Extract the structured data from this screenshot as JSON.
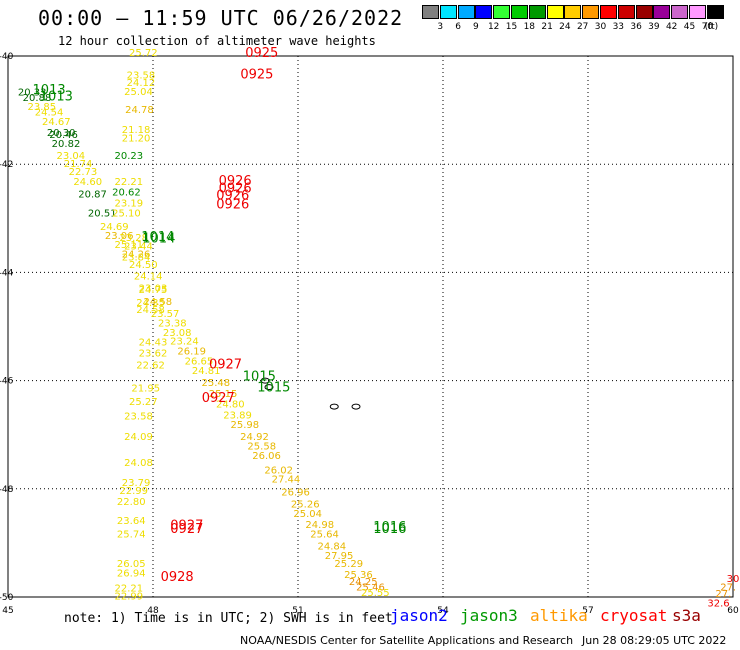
{
  "header": {
    "title": "00:00 – 11:59 UTC 06/26/2022",
    "subtitle": "12 hour collection of altimeter wave heights"
  },
  "colorbar": {
    "colors": [
      "#808080",
      "#00e5ff",
      "#00aaff",
      "#0000ff",
      "#33ff33",
      "#00cc00",
      "#009900",
      "#ffff00",
      "#ffcc00",
      "#ff9900",
      "#ff0000",
      "#cc0000",
      "#990000",
      "#990099",
      "#cc66cc",
      "#ff99ff",
      "#000000"
    ],
    "labels": [
      "3",
      "6",
      "9",
      "12",
      "15",
      "18",
      "21",
      "24",
      "27",
      "30",
      "33",
      "36",
      "39",
      "42",
      "45",
      "70"
    ],
    "unit": "(ft)"
  },
  "footer": {
    "note": "note: 1) Time is in UTC; 2) SWH is in feet",
    "satellites": [
      {
        "name": "jason2",
        "color": "#0000ff"
      },
      {
        "name": "jason3",
        "color": "#009900"
      },
      {
        "name": "altika",
        "color": "#ff9900"
      },
      {
        "name": "cryosat",
        "color": "#ff0000"
      },
      {
        "name": "s3a",
        "color": "#990000"
      }
    ],
    "credit": "NOAA/NESDIS Center for Satellite Applications and Research",
    "timestamp": "Jun 28 08:29:05 UTC 2022"
  },
  "chart_data": {
    "type": "scatter",
    "title": "00:00 – 11:59 UTC 06/26/2022",
    "subtitle": "12 hour collection of altimeter wave heights",
    "xlabel": "",
    "ylabel": "",
    "xlim": [
      45,
      60
    ],
    "ylim": [
      -50,
      -40
    ],
    "x_ticks": [
      "45",
      "48",
      "51",
      "54",
      "57",
      "60"
    ],
    "y_ticks": [
      "-40",
      "-42",
      "-44",
      "-46",
      "-48",
      "-50"
    ],
    "grid": true,
    "colors": {
      "green": "#008800",
      "yellow": "#eedd00",
      "gold": "#e8b800",
      "orange": "#e89000",
      "red": "#ee0000",
      "darkgreen": "#006600"
    },
    "wave_heights": [
      {
        "x": 45.5,
        "y": -40.73,
        "label": "20.33",
        "color": "darkgreen"
      },
      {
        "x": 45.6,
        "y": -40.83,
        "label": "20.88",
        "color": "darkgreen"
      },
      {
        "x": 45.7,
        "y": -41.0,
        "label": "23.85",
        "color": "yellow"
      },
      {
        "x": 45.85,
        "y": -41.1,
        "label": "24.54",
        "color": "yellow"
      },
      {
        "x": 46.0,
        "y": -41.28,
        "label": "24.67",
        "color": "yellow"
      },
      {
        "x": 46.1,
        "y": -41.48,
        "label": "20.30",
        "color": "darkgreen"
      },
      {
        "x": 46.15,
        "y": -41.52,
        "label": "20.46",
        "color": "darkgreen"
      },
      {
        "x": 46.2,
        "y": -41.68,
        "label": "20.82",
        "color": "darkgreen"
      },
      {
        "x": 46.3,
        "y": -41.9,
        "label": "23.04",
        "color": "yellow"
      },
      {
        "x": 46.45,
        "y": -42.05,
        "label": "21.74",
        "color": "yellow"
      },
      {
        "x": 46.55,
        "y": -42.2,
        "label": "22.73",
        "color": "yellow"
      },
      {
        "x": 46.65,
        "y": -42.38,
        "label": "24.60",
        "color": "yellow"
      },
      {
        "x": 46.75,
        "y": -42.62,
        "label": "20.87",
        "color": "darkgreen"
      },
      {
        "x": 46.95,
        "y": -42.97,
        "label": "20.51",
        "color": "darkgreen"
      },
      {
        "x": 47.2,
        "y": -43.22,
        "label": "24.69",
        "color": "yellow"
      },
      {
        "x": 47.3,
        "y": -43.38,
        "label": "23.06",
        "color": "gold"
      },
      {
        "x": 47.5,
        "y": -43.55,
        "label": "25.11",
        "color": "yellow"
      },
      {
        "x": 47.65,
        "y": -43.72,
        "label": "24.26",
        "color": "gold"
      },
      {
        "x": 47.8,
        "y": -43.92,
        "label": "24.50",
        "color": "yellow"
      },
      {
        "x": 47.9,
        "y": -44.13,
        "label": "24.14",
        "color": "yellow"
      },
      {
        "x": 48.0,
        "y": -44.38,
        "label": "24.75",
        "color": "yellow"
      },
      {
        "x": 48.1,
        "y": -44.6,
        "label": "24.58",
        "color": "gold"
      },
      {
        "x": 48.25,
        "y": -44.82,
        "label": "23.57",
        "color": "yellow"
      },
      {
        "x": 48.4,
        "y": -45.0,
        "label": "23.38",
        "color": "yellow"
      },
      {
        "x": 48.5,
        "y": -45.18,
        "label": "23.08",
        "color": "yellow"
      },
      {
        "x": 48.65,
        "y": -45.33,
        "label": "23.24",
        "color": "yellow"
      },
      {
        "x": 48.8,
        "y": -45.52,
        "label": "26.19",
        "color": "gold"
      },
      {
        "x": 48.95,
        "y": -45.7,
        "label": "26.65",
        "color": "yellow"
      },
      {
        "x": 49.1,
        "y": -45.88,
        "label": "24.81",
        "color": "yellow"
      },
      {
        "x": 49.3,
        "y": -46.1,
        "label": "25.48",
        "color": "gold"
      },
      {
        "x": 49.45,
        "y": -46.3,
        "label": "25.15",
        "color": "gold"
      },
      {
        "x": 49.6,
        "y": -46.5,
        "label": "24.80",
        "color": "yellow"
      },
      {
        "x": 49.75,
        "y": -46.7,
        "label": "23.89",
        "color": "yellow"
      },
      {
        "x": 49.9,
        "y": -46.88,
        "label": "25.98",
        "color": "gold"
      },
      {
        "x": 50.1,
        "y": -47.1,
        "label": "24.92",
        "color": "gold"
      },
      {
        "x": 50.25,
        "y": -47.27,
        "label": "25.58",
        "color": "gold"
      },
      {
        "x": 50.35,
        "y": -47.45,
        "label": "26.06",
        "color": "gold"
      },
      {
        "x": 50.6,
        "y": -47.72,
        "label": "26.02",
        "color": "gold"
      },
      {
        "x": 50.75,
        "y": -47.88,
        "label": "27.44",
        "color": "gold"
      },
      {
        "x": 50.95,
        "y": -48.12,
        "label": "26.96",
        "color": "gold"
      },
      {
        "x": 51.15,
        "y": -48.35,
        "label": "25.26",
        "color": "gold"
      },
      {
        "x": 51.2,
        "y": -48.52,
        "label": "25.04",
        "color": "gold"
      },
      {
        "x": 51.45,
        "y": -48.72,
        "label": "24.98",
        "color": "gold"
      },
      {
        "x": 51.55,
        "y": -48.9,
        "label": "25.64",
        "color": "gold"
      },
      {
        "x": 51.7,
        "y": -49.12,
        "label": "24.84",
        "color": "gold"
      },
      {
        "x": 51.85,
        "y": -49.3,
        "label": "27.95",
        "color": "gold"
      },
      {
        "x": 52.05,
        "y": -49.45,
        "label": "25.29",
        "color": "gold"
      },
      {
        "x": 52.25,
        "y": -49.65,
        "label": "25.36",
        "color": "gold"
      },
      {
        "x": 52.35,
        "y": -49.78,
        "label": "24.25",
        "color": "orange"
      },
      {
        "x": 52.5,
        "y": -49.88,
        "label": "25.46",
        "color": "orange"
      },
      {
        "x": 52.6,
        "y": -49.98,
        "label": "25.55",
        "color": "yellow"
      },
      {
        "x": 47.8,
        "y": -40.0,
        "label": "25.72",
        "color": "yellow"
      },
      {
        "x": 47.75,
        "y": -40.42,
        "label": "23.58",
        "color": "yellow"
      },
      {
        "x": 47.75,
        "y": -40.55,
        "label": "24.12",
        "color": "yellow"
      },
      {
        "x": 47.7,
        "y": -40.72,
        "label": "25.04",
        "color": "yellow"
      },
      {
        "x": 47.72,
        "y": -41.05,
        "label": "24.78",
        "color": "gold"
      },
      {
        "x": 47.65,
        "y": -41.42,
        "label": "21.18",
        "color": "yellow"
      },
      {
        "x": 47.65,
        "y": -41.58,
        "label": "21.20",
        "color": "yellow"
      },
      {
        "x": 47.5,
        "y": -41.9,
        "label": "20.23",
        "color": "green"
      },
      {
        "x": 47.5,
        "y": -42.38,
        "label": "22.21",
        "color": "yellow"
      },
      {
        "x": 47.45,
        "y": -42.58,
        "label": "20.62",
        "color": "green"
      },
      {
        "x": 47.5,
        "y": -42.78,
        "label": "23.19",
        "color": "yellow"
      },
      {
        "x": 47.45,
        "y": -42.97,
        "label": "25.10",
        "color": "yellow"
      },
      {
        "x": 47.6,
        "y": -43.42,
        "label": "23.28",
        "color": "yellow"
      },
      {
        "x": 47.7,
        "y": -43.58,
        "label": "23.44",
        "color": "yellow"
      },
      {
        "x": 47.65,
        "y": -43.78,
        "label": "23.84",
        "color": "yellow"
      },
      {
        "x": 48.0,
        "y": -44.35,
        "label": "23.03",
        "color": "yellow"
      },
      {
        "x": 47.95,
        "y": -44.62,
        "label": "24.35",
        "color": "yellow"
      },
      {
        "x": 47.95,
        "y": -44.75,
        "label": "24.58",
        "color": "yellow"
      },
      {
        "x": 48.0,
        "y": -45.35,
        "label": "24.43",
        "color": "yellow"
      },
      {
        "x": 48.0,
        "y": -45.55,
        "label": "23.62",
        "color": "yellow"
      },
      {
        "x": 47.95,
        "y": -45.78,
        "label": "22.62",
        "color": "yellow"
      },
      {
        "x": 47.85,
        "y": -46.2,
        "label": "21.95",
        "color": "yellow"
      },
      {
        "x": 47.8,
        "y": -46.45,
        "label": "25.27",
        "color": "yellow"
      },
      {
        "x": 47.7,
        "y": -46.72,
        "label": "23.58",
        "color": "yellow"
      },
      {
        "x": 47.7,
        "y": -47.1,
        "label": "24.09",
        "color": "yellow"
      },
      {
        "x": 47.7,
        "y": -47.58,
        "label": "24.08",
        "color": "yellow"
      },
      {
        "x": 47.65,
        "y": -47.95,
        "label": "23.79",
        "color": "yellow"
      },
      {
        "x": 47.6,
        "y": -48.1,
        "label": "22.99",
        "color": "yellow"
      },
      {
        "x": 47.55,
        "y": -48.3,
        "label": "22.80",
        "color": "yellow"
      },
      {
        "x": 47.55,
        "y": -48.65,
        "label": "23.64",
        "color": "yellow"
      },
      {
        "x": 47.55,
        "y": -48.9,
        "label": "25.74",
        "color": "yellow"
      },
      {
        "x": 47.55,
        "y": -49.45,
        "label": "26.05",
        "color": "yellow"
      },
      {
        "x": 47.55,
        "y": -49.62,
        "label": "26.94",
        "color": "yellow"
      },
      {
        "x": 47.5,
        "y": -49.9,
        "label": "22.21",
        "color": "yellow"
      },
      {
        "x": 47.5,
        "y": -50.05,
        "label": "22.99",
        "color": "yellow"
      },
      {
        "x": 60.0,
        "y": -49.72,
        "label": "30",
        "color": "red"
      },
      {
        "x": 59.9,
        "y": -49.88,
        "label": "27.",
        "color": "orange"
      },
      {
        "x": 59.8,
        "y": -50.0,
        "label": "27.",
        "color": "orange"
      },
      {
        "x": 59.7,
        "y": -50.18,
        "label": "32.6",
        "color": "red"
      }
    ],
    "pressure_labels": [
      {
        "x": 45.85,
        "y": -40.7,
        "label": "1013",
        "color": "green"
      },
      {
        "x": 46.0,
        "y": -40.82,
        "label": "1013",
        "color": "green"
      },
      {
        "x": 48.1,
        "y": -43.42,
        "label": "1014",
        "color": "green"
      },
      {
        "x": 48.12,
        "y": -43.45,
        "label": "1014",
        "color": "green"
      },
      {
        "x": 50.2,
        "y": -46.0,
        "label": "1015",
        "color": "green"
      },
      {
        "x": 50.5,
        "y": -46.2,
        "label": "1015",
        "color": "green"
      },
      {
        "x": 52.9,
        "y": -48.78,
        "label": "1016",
        "color": "green"
      },
      {
        "x": 52.9,
        "y": -48.82,
        "label": "1016",
        "color": "green"
      },
      {
        "x": 50.25,
        "y": -40.02,
        "label": "0925",
        "color": "red"
      },
      {
        "x": 50.15,
        "y": -40.42,
        "label": "0925",
        "color": "red"
      },
      {
        "x": 49.7,
        "y": -42.38,
        "label": "0926",
        "color": "red"
      },
      {
        "x": 49.7,
        "y": -42.52,
        "label": "0926",
        "color": "red"
      },
      {
        "x": 49.65,
        "y": -42.65,
        "label": "0926",
        "color": "red"
      },
      {
        "x": 49.65,
        "y": -42.82,
        "label": "0926",
        "color": "red"
      },
      {
        "x": 49.5,
        "y": -45.78,
        "label": "0927",
        "color": "red"
      },
      {
        "x": 49.35,
        "y": -46.4,
        "label": "0927",
        "color": "red"
      },
      {
        "x": 48.7,
        "y": -48.75,
        "label": "0927",
        "color": "red"
      },
      {
        "x": 48.7,
        "y": -48.82,
        "label": "0927",
        "color": "red"
      },
      {
        "x": 48.5,
        "y": -49.7,
        "label": "0928",
        "color": "red"
      }
    ],
    "islands": [
      {
        "name": "island-1",
        "x": 50.32,
        "y": -46.0
      },
      {
        "name": "island-2",
        "x": 50.4,
        "y": -46.12
      },
      {
        "name": "island-3",
        "x": 51.75,
        "y": -46.48
      },
      {
        "name": "island-4",
        "x": 52.2,
        "y": -46.48
      }
    ]
  }
}
